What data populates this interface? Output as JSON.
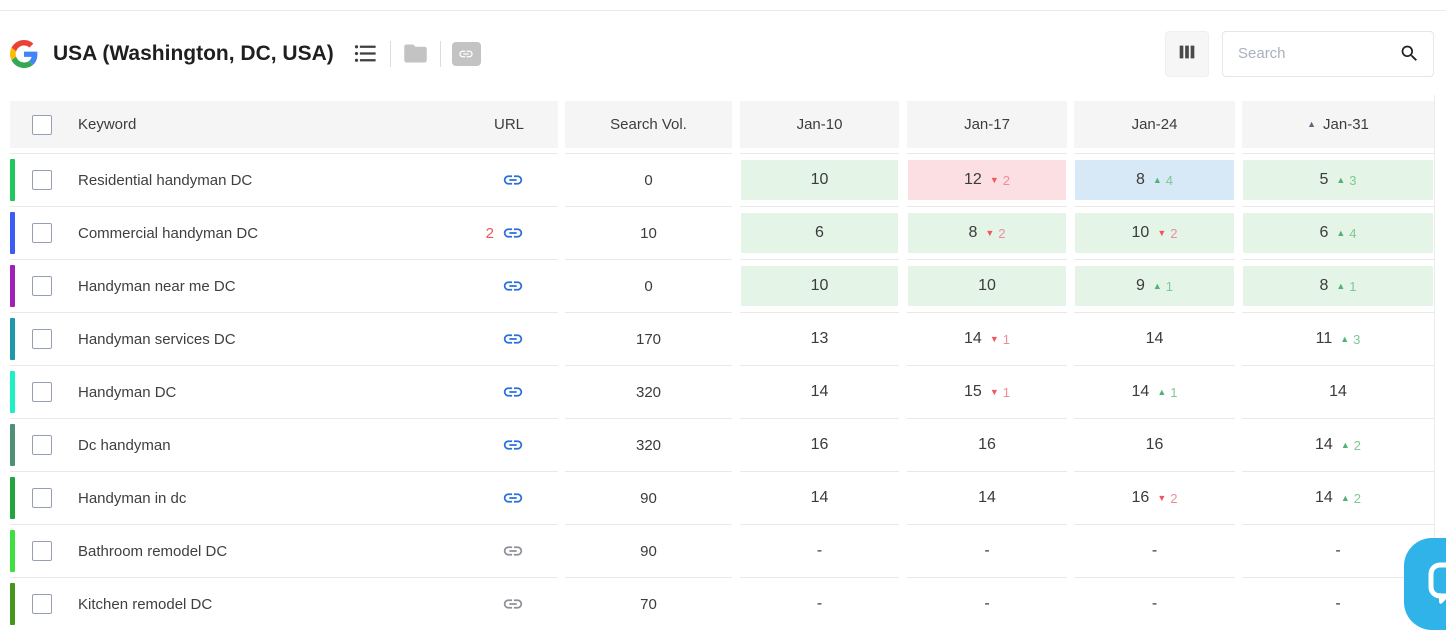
{
  "topbar": {
    "title": "USA (Washington, DC, USA)",
    "search_placeholder": "Search"
  },
  "table": {
    "header": {
      "keyword": "Keyword",
      "url": "URL",
      "search_vol": "Search Vol.",
      "dates": [
        "Jan-10",
        "Jan-17",
        "Jan-24",
        "Jan-31"
      ],
      "sorted_column": "Jan-31",
      "sort_indicator": "▲"
    },
    "rows": [
      {
        "keyword": "Residential handyman DC",
        "bar_color": "#1fc75c",
        "link_color": "blue",
        "search_vol": "0",
        "cells": [
          {
            "v": "10",
            "bg": "green"
          },
          {
            "v": "12",
            "chg": "2",
            "dir": "down",
            "bg": "pink"
          },
          {
            "v": "8",
            "chg": "4",
            "dir": "up",
            "bg": "blue"
          },
          {
            "v": "5",
            "chg": "3",
            "dir": "up",
            "bg": "green"
          }
        ]
      },
      {
        "keyword": "Commercial handyman DC",
        "bar_color": "#3b5cf6",
        "url_count": "2",
        "link_color": "blue",
        "search_vol": "10",
        "cells": [
          {
            "v": "6",
            "bg": "green"
          },
          {
            "v": "8",
            "chg": "2",
            "dir": "down",
            "bg": "green"
          },
          {
            "v": "10",
            "chg": "2",
            "dir": "down",
            "bg": "green"
          },
          {
            "v": "6",
            "chg": "4",
            "dir": "up",
            "bg": "green"
          }
        ]
      },
      {
        "keyword": "Handyman near me DC",
        "bar_color": "#9e22b5",
        "link_color": "blue",
        "search_vol": "0",
        "cells": [
          {
            "v": "10",
            "bg": "green"
          },
          {
            "v": "10",
            "bg": "green"
          },
          {
            "v": "9",
            "chg": "1",
            "dir": "up",
            "bg": "green"
          },
          {
            "v": "8",
            "chg": "1",
            "dir": "up",
            "bg": "green"
          }
        ]
      },
      {
        "keyword": "Handyman services DC",
        "bar_color": "#1d98ab",
        "link_color": "blue",
        "search_vol": "170",
        "cells": [
          {
            "v": "13"
          },
          {
            "v": "14",
            "chg": "1",
            "dir": "down"
          },
          {
            "v": "14"
          },
          {
            "v": "11",
            "chg": "3",
            "dir": "up"
          }
        ]
      },
      {
        "keyword": "Handyman DC",
        "bar_color": "#1df0c3",
        "link_color": "blue",
        "search_vol": "320",
        "cells": [
          {
            "v": "14"
          },
          {
            "v": "15",
            "chg": "1",
            "dir": "down"
          },
          {
            "v": "14",
            "chg": "1",
            "dir": "up"
          },
          {
            "v": "14"
          }
        ]
      },
      {
        "keyword": "Dc handyman",
        "bar_color": "#4f9077",
        "link_color": "blue",
        "search_vol": "320",
        "cells": [
          {
            "v": "16"
          },
          {
            "v": "16"
          },
          {
            "v": "16"
          },
          {
            "v": "14",
            "chg": "2",
            "dir": "up"
          }
        ]
      },
      {
        "keyword": "Handyman in dc",
        "bar_color": "#22a43e",
        "link_color": "blue",
        "search_vol": "90",
        "cells": [
          {
            "v": "14"
          },
          {
            "v": "14"
          },
          {
            "v": "16",
            "chg": "2",
            "dir": "down"
          },
          {
            "v": "14",
            "chg": "2",
            "dir": "up"
          }
        ]
      },
      {
        "keyword": "Bathroom remodel DC",
        "bar_color": "#3fdf42",
        "link_color": "gray",
        "search_vol": "90",
        "cells": [
          {
            "v": "-"
          },
          {
            "v": "-"
          },
          {
            "v": "-"
          },
          {
            "v": "-"
          }
        ]
      },
      {
        "keyword": "Kitchen remodel DC",
        "bar_color": "#47951d",
        "link_color": "gray",
        "search_vol": "70",
        "cells": [
          {
            "v": "-"
          },
          {
            "v": "-"
          },
          {
            "v": "-"
          },
          {
            "v": "-"
          }
        ]
      }
    ]
  },
  "colors": {
    "cell_bg_green": "#e4f4e6",
    "cell_bg_pink": "#fbdfe2",
    "cell_bg_blue": "#d7e9f7",
    "up_arrow": "#4fb473",
    "up_number": "#7fc893",
    "down_arrow": "#f2565e",
    "down_number": "#ee8e94",
    "link_blue": "#2a6fdb",
    "link_gray": "#8d9197",
    "count_red": "#f0545c",
    "chat_widget_blue": "#2fb3e8"
  }
}
